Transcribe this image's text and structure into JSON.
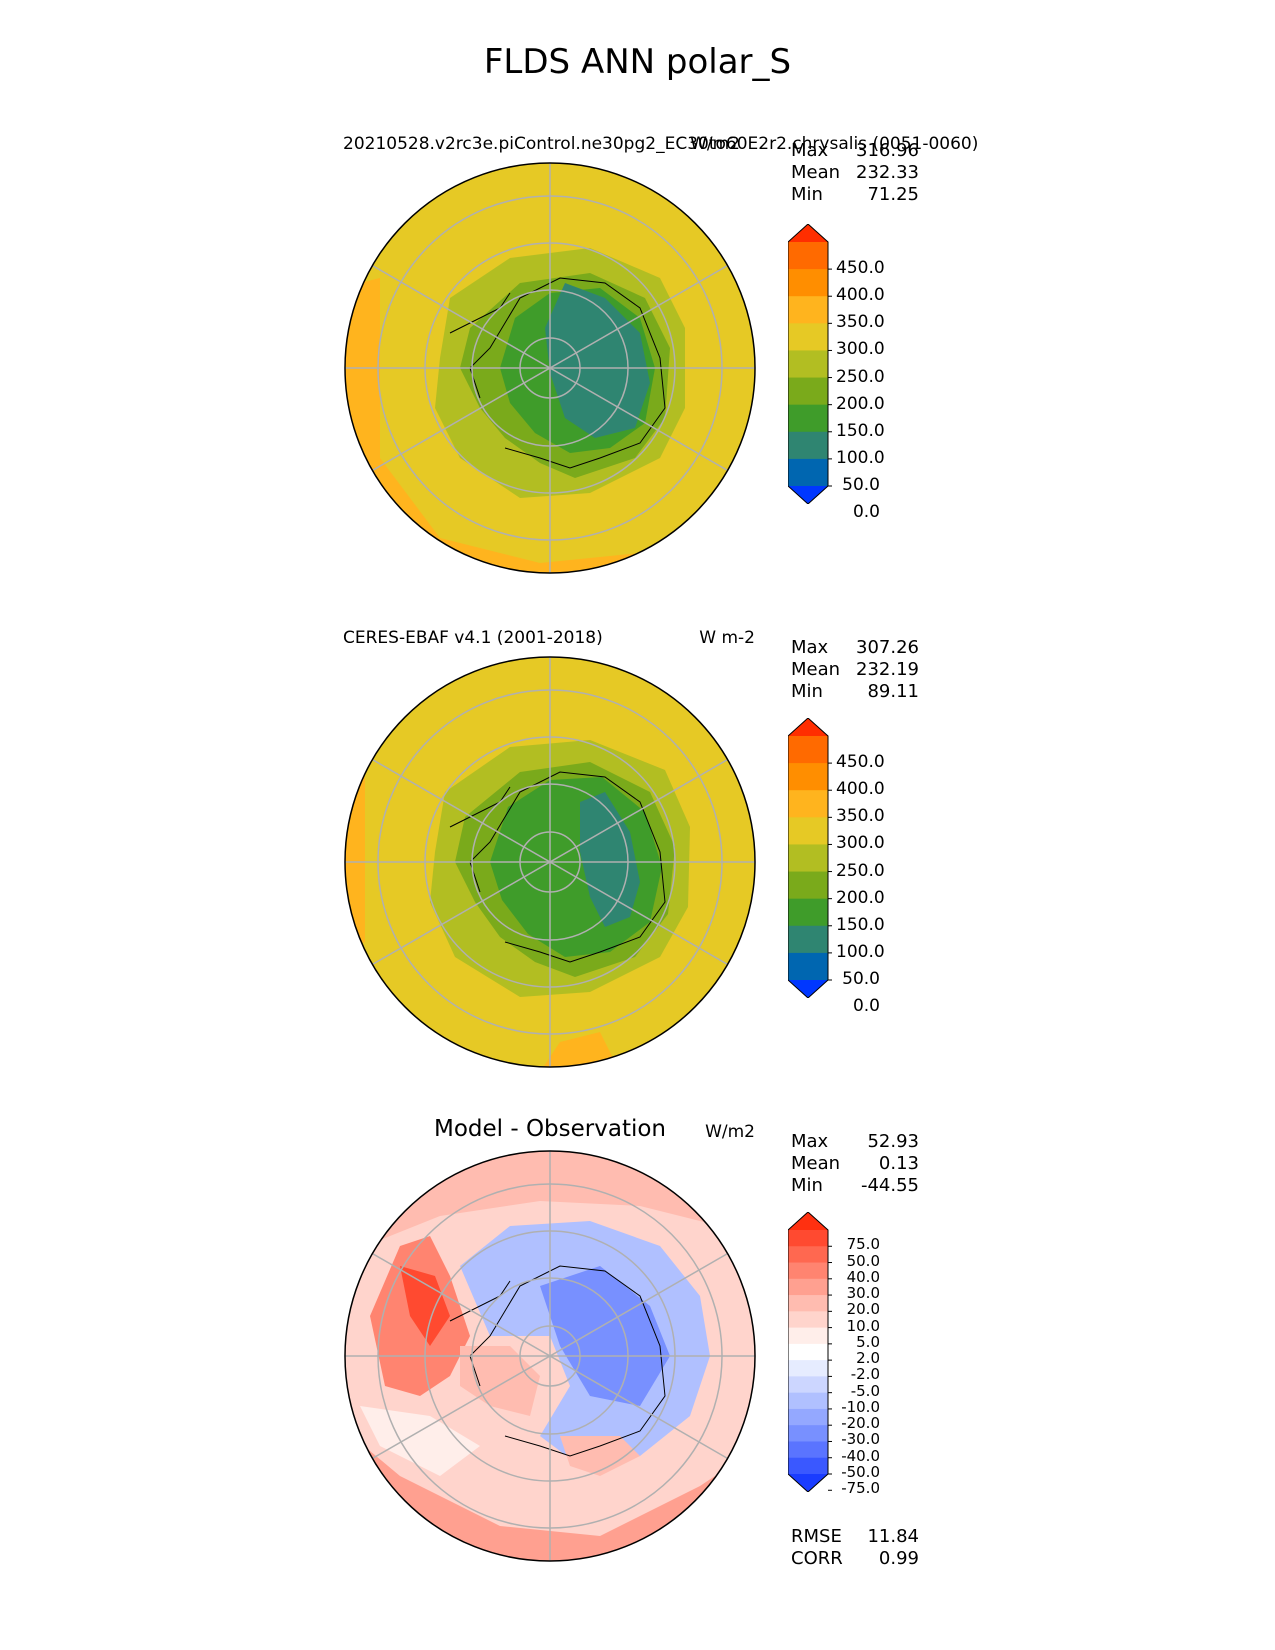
{
  "figure": {
    "title": "FLDS ANN polar_S"
  },
  "panels": [
    {
      "title": "20210528.v2rc3e.piControl.ne30pg2_EC30to60E2r2.chrysalis (0051-0060)",
      "units": "W/m2",
      "stats": {
        "max_label": "Max",
        "max": "316.96",
        "mean_label": "Mean",
        "mean": "232.33",
        "min_label": "Min",
        "min": "71.25"
      },
      "colorbar": {
        "ticks": [
          "450.0",
          "400.0",
          "350.0",
          "300.0",
          "250.0",
          "200.0",
          "150.0",
          "100.0",
          "50.0",
          "0.0"
        ],
        "colors": [
          "#ff2e00",
          "#ff6a00",
          "#ff8e00",
          "#ffb41e",
          "#e6c925",
          "#b2be22",
          "#7aaa1b",
          "#3f9c2a",
          "#2f8571",
          "#0066b0",
          "#0037ff"
        ]
      }
    },
    {
      "title": "CERES-EBAF v4.1 (2001-2018)",
      "units": "W m-2",
      "stats": {
        "max_label": "Max",
        "max": "307.26",
        "mean_label": "Mean",
        "mean": "232.19",
        "min_label": "Min",
        "min": "89.11"
      },
      "colorbar": {
        "ticks": [
          "450.0",
          "400.0",
          "350.0",
          "300.0",
          "250.0",
          "200.0",
          "150.0",
          "100.0",
          "50.0",
          "0.0"
        ],
        "colors": [
          "#ff2e00",
          "#ff6a00",
          "#ff8e00",
          "#ffb41e",
          "#e6c925",
          "#b2be22",
          "#7aaa1b",
          "#3f9c2a",
          "#2f8571",
          "#0066b0",
          "#0037ff"
        ]
      }
    },
    {
      "title": "Model - Observation",
      "units": "W/m2",
      "stats": {
        "max_label": "Max",
        "max": "52.93",
        "mean_label": "Mean",
        "mean": "0.13",
        "min_label": "Min",
        "min": "-44.55"
      },
      "colorbar": {
        "ticks": [
          "75.0",
          "50.0",
          "40.0",
          "30.0",
          "20.0",
          "10.0",
          "5.0",
          "2.0",
          "-2.0",
          "-5.0",
          "-10.0",
          "-20.0",
          "-30.0",
          "-40.0",
          "-50.0",
          "-75.0"
        ],
        "colors": [
          "#ff3010",
          "#ff4a30",
          "#ff6850",
          "#ff8470",
          "#ffa090",
          "#ffbcb0",
          "#ffd4cc",
          "#ffeeea",
          "#ffffff",
          "#e6ecff",
          "#ccd6ff",
          "#b0c0ff",
          "#94a8ff",
          "#7890ff",
          "#5a74ff",
          "#3a58ff",
          "#1a3cff"
        ]
      },
      "skill": {
        "rmse_label": "RMSE",
        "rmse": "11.84",
        "corr_label": "CORR",
        "corr": "0.99"
      }
    }
  ]
}
